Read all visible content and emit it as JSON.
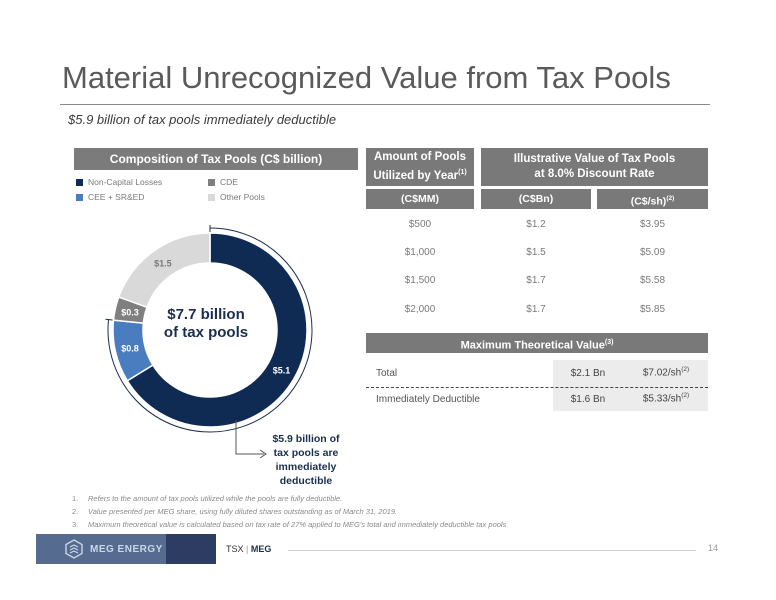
{
  "title": "Material Unrecognized Value from Tax Pools",
  "subtitle": "$5.9 billion of tax pools immediately deductible",
  "composition": {
    "header": "Composition of Tax Pools (C$ billion)",
    "legend": [
      {
        "label": "Non-Capital Losses",
        "color": "#0f2b54"
      },
      {
        "label": "CDE",
        "color": "#7f7f7f"
      },
      {
        "label": "CEE + SR&ED",
        "color": "#4a7cc0"
      },
      {
        "label": "Other Pools",
        "color": "#d9d9d9"
      }
    ],
    "center_line1": "$7.7 billion",
    "center_line2": "of tax pools",
    "callout_lines": [
      "$5.9 billion of",
      "tax pools are",
      "immediately",
      "deductible"
    ]
  },
  "chart_data": {
    "type": "pie",
    "donut": true,
    "slices": [
      {
        "label": "$5.1",
        "value": 5.1,
        "color": "#0f2b54",
        "series": "Non-Capital Losses"
      },
      {
        "label": "$0.8",
        "value": 0.8,
        "color": "#4a7cc0",
        "series": "CEE + SR&ED"
      },
      {
        "label": "$0.3",
        "value": 0.3,
        "color": "#7f7f7f",
        "series": "CDE"
      },
      {
        "label": "$1.5",
        "value": 1.5,
        "color": "#d9d9d9",
        "series": "Other Pools"
      }
    ]
  },
  "pools_table": {
    "header_left_line1": "Amount of Pools",
    "header_left_line2": "Utilized by Year",
    "header_left_sup": "(1)",
    "header_right_line1": "Illustrative Value of Tax Pools",
    "header_right_line2": "at 8.0% Discount Rate",
    "sub_headers": [
      "(C$MM)",
      "(C$Bn)",
      "(C$/sh)"
    ],
    "sub_header_sup": "(2)",
    "rows": [
      [
        "$500",
        "$1.2",
        "$3.95"
      ],
      [
        "$1,000",
        "$1.5",
        "$5.09"
      ],
      [
        "$1,500",
        "$1.7",
        "$5.58"
      ],
      [
        "$2,000",
        "$1.7",
        "$5.85"
      ]
    ]
  },
  "max_value": {
    "header": "Maximum Theoretical Value",
    "header_sup": "(3)",
    "rows": [
      {
        "label": "Total",
        "bn": "$2.1 Bn",
        "per_share": "$7.02/sh",
        "sup": "(2)"
      },
      {
        "label": "Immediately Deductible",
        "bn": "$1.6 Bn",
        "per_share": "$5.33/sh",
        "sup": "(2)"
      }
    ]
  },
  "footnotes": [
    {
      "num": "1.",
      "text": "Refers to the amount of tax pools utilized while the pools are fully deductible."
    },
    {
      "num": "2.",
      "text": "Value presented per MEG share, using fully diluted shares outstanding as of March 31, 2019."
    },
    {
      "num": "3.",
      "text": "Maximum theoretical value is calculated based on tax rate of 27% applied to MEG's total and immediately deductible tax pools"
    }
  ],
  "footer": {
    "logo_text": "MEG ENERGY",
    "exchange": "TSX",
    "separator": "|",
    "ticker": "MEG",
    "page_number": "14"
  }
}
